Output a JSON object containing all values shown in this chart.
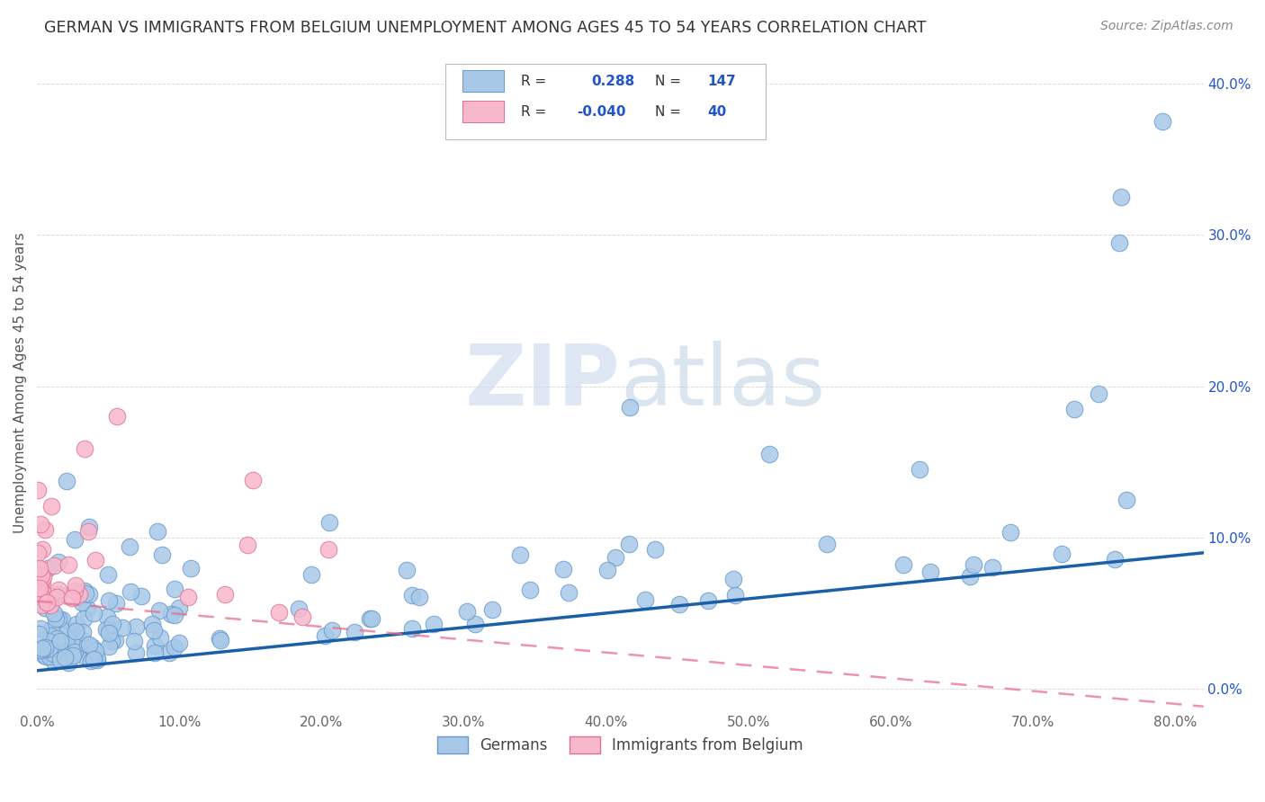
{
  "title": "GERMAN VS IMMIGRANTS FROM BELGIUM UNEMPLOYMENT AMONG AGES 45 TO 54 YEARS CORRELATION CHART",
  "source": "Source: ZipAtlas.com",
  "ylabel": "Unemployment Among Ages 45 to 54 years",
  "xlim": [
    0.0,
    0.82
  ],
  "ylim": [
    -0.015,
    0.42
  ],
  "yticks": [
    0.0,
    0.1,
    0.2,
    0.3,
    0.4
  ],
  "xticks": [
    0.0,
    0.1,
    0.2,
    0.3,
    0.4,
    0.5,
    0.6,
    0.7,
    0.8
  ],
  "german_R": 0.288,
  "german_N": 147,
  "belgium_R": -0.04,
  "belgium_N": 40,
  "german_color": "#a8c8e8",
  "german_edge": "#6699cc",
  "german_line_color": "#1a5fa8",
  "belgium_color": "#f8b8cc",
  "belgium_edge": "#e07090",
  "belgium_line_color": "#e87090",
  "watermark_zip": "#c8d8ec",
  "watermark_atlas": "#b0c4de",
  "background_color": "#ffffff",
  "grid_color": "#cccccc",
  "legend_box_german": "#a8c8e8",
  "legend_box_belgium": "#f8b8cc",
  "legend_text_color": "#2255cc",
  "title_color": "#333333",
  "source_color": "#888888",
  "tick_color_x": "#666666",
  "tick_color_y": "#2255cc"
}
